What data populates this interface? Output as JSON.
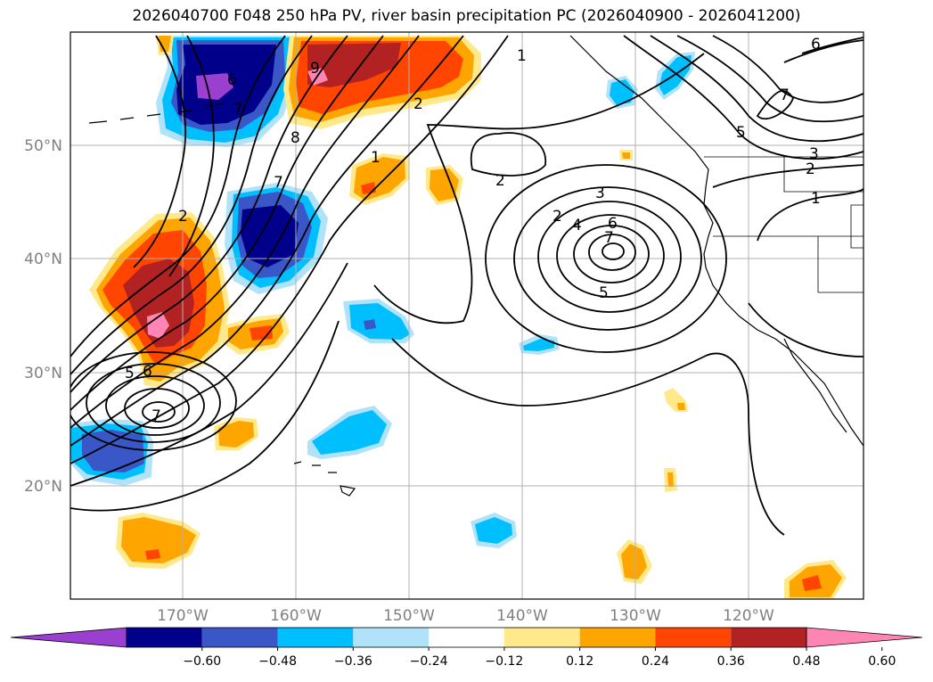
{
  "title": "2026040700 F048 250 hPa PV, river basin precipitation PC (2026040900 - 2026041200)",
  "lat_labels": [
    "50°N",
    "40°N",
    "30°N",
    "20°N"
  ],
  "lon_labels": [
    "170°W",
    "160°W",
    "150°W",
    "140°W",
    "130°W",
    "120°W"
  ],
  "colorbar": {
    "colors": [
      "#9a3fd0",
      "#00008b",
      "#3a57c8",
      "#00bfff",
      "#b0e2fa",
      "#ffffff",
      "#ffe98a",
      "#ffa500",
      "#ff4500",
      "#b22222",
      "#ff85b4"
    ],
    "tick_labels": [
      "−0.60",
      "−0.48",
      "−0.36",
      "−0.24",
      "−0.12",
      "0.12",
      "0.24",
      "0.36",
      "0.48",
      "0.60"
    ]
  },
  "contour_labels": [
    "1",
    "2",
    "9",
    "8",
    "7",
    "1",
    "2",
    "2",
    "6",
    "7",
    "5",
    "3",
    "2",
    "1",
    "2",
    "3",
    "4",
    "6",
    "7",
    "5",
    "7",
    "5",
    "6",
    "7",
    "6"
  ]
}
